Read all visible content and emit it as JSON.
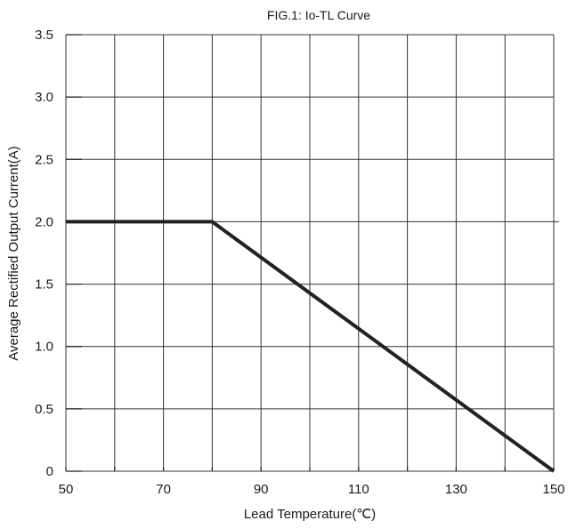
{
  "chart_data": {
    "type": "line",
    "title": "FIG.1: Io-TL Curve",
    "xlabel": "Lead Temperature(℃)",
    "ylabel": "Average Rectified Output Current(A)",
    "xlim": [
      50,
      150
    ],
    "ylim": [
      0,
      3.5
    ],
    "x_ticks": [
      50,
      70,
      90,
      110,
      130,
      150
    ],
    "x_tick_labels": [
      "50",
      "70",
      "90",
      "110",
      "130",
      "150"
    ],
    "x_grid": [
      50,
      60,
      70,
      80,
      90,
      100,
      110,
      120,
      130,
      140,
      150
    ],
    "y_ticks": [
      0,
      0.5,
      1.0,
      1.5,
      2.0,
      2.5,
      3.0,
      3.5
    ],
    "y_tick_labels": [
      "0",
      "0.5",
      "1.0",
      "1.5",
      "2.0",
      "2.5",
      "3.0",
      "3.5"
    ],
    "grid": true,
    "series": [
      {
        "x": [
          50,
          80,
          150
        ],
        "y": [
          2.0,
          2.0,
          0
        ],
        "color": "#222222"
      }
    ]
  }
}
